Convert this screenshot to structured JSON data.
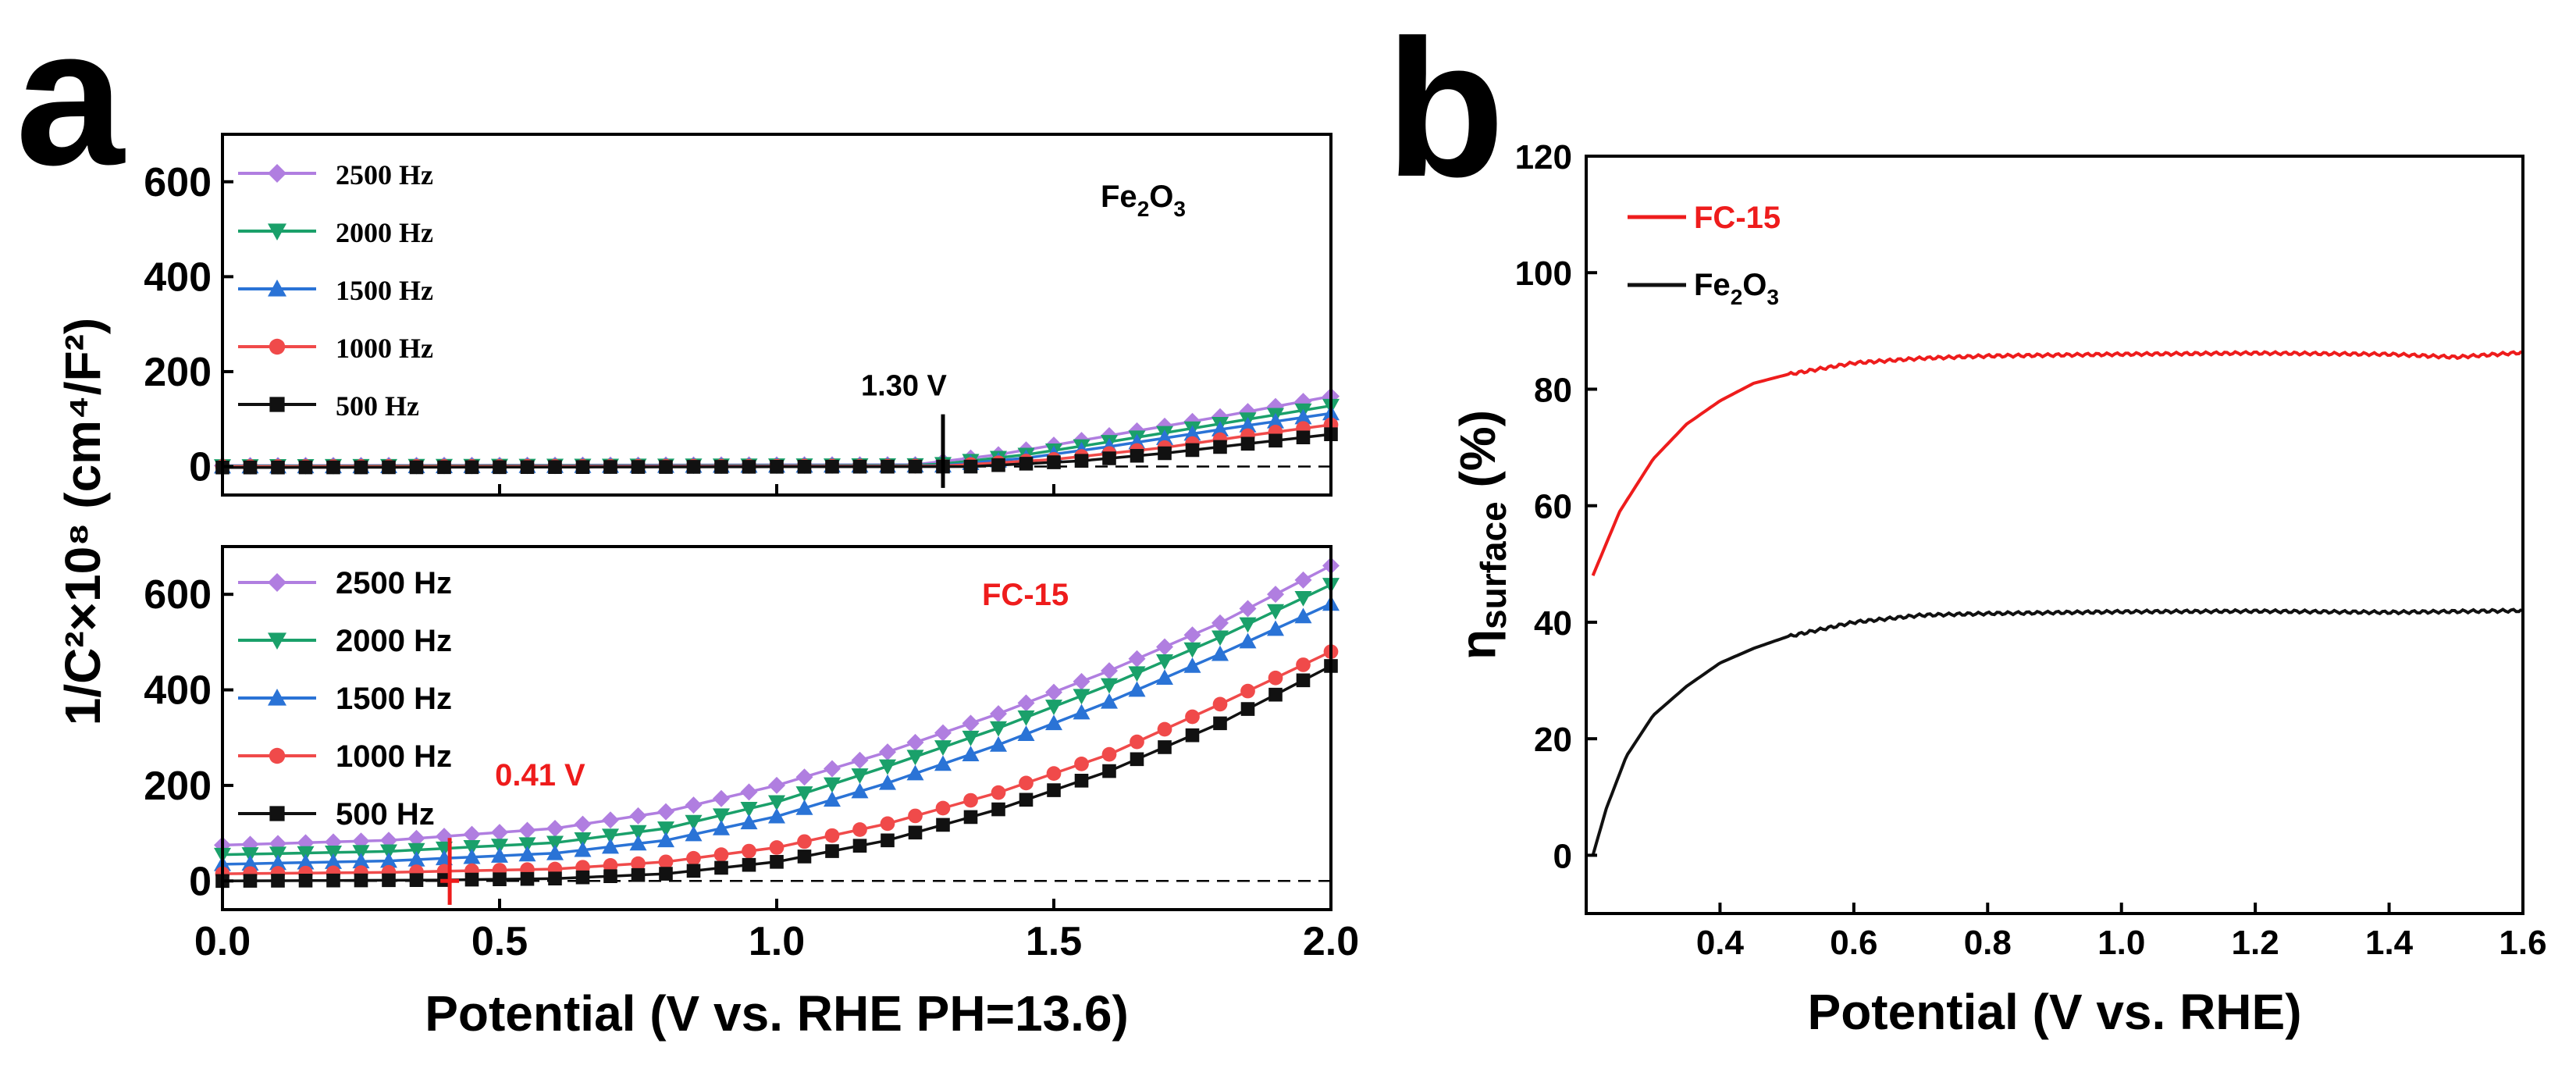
{
  "colors": {
    "f2500": "#b07ee0",
    "f2000": "#1aa06a",
    "f1500": "#2a73d6",
    "f1000": "#f04a4a",
    "f500": "#111111",
    "fc15": "#ee1c1c",
    "fe2o3": "#111111",
    "annot_red": "#ee1c1c"
  },
  "chart_data": [
    {
      "panel": "a",
      "type": "line",
      "shared_xlabel": "Potential (V vs. RHE PH=13.6)",
      "shared_ylabel": "1/C²×10⁸ (cm⁴/F²)",
      "xlim": [
        0,
        2.0
      ],
      "xticks": [
        "0.0",
        "0.5",
        "1.0",
        "1.5",
        "2.0"
      ],
      "subplots": [
        {
          "id": "top",
          "title": "Fe2O3",
          "title_main": "Fe",
          "title_sub1": "2",
          "title_mid": "O",
          "title_sub2": "3",
          "ylim": [
            -60,
            700
          ],
          "yticks": [
            "0",
            "200",
            "400",
            "600"
          ],
          "zero_line": "dashed",
          "annotation": {
            "label": "1.30 V",
            "x": 1.3
          },
          "legend": [
            "2500 Hz",
            "2000 Hz",
            "1500 Hz",
            "1000 Hz",
            "500 Hz"
          ],
          "series": [
            {
              "name": "2500 Hz",
              "marker": "diamond",
              "color_key": "f2500",
              "points": [
                [
                  0,
                  2
                ],
                [
                  1.25,
                  4
                ],
                [
                  1.4,
                  25
                ],
                [
                  1.6,
                  65
                ],
                [
                  1.8,
                  105
                ],
                [
                  2.0,
                  148
                ]
              ]
            },
            {
              "name": "2000 Hz",
              "marker": "triangle-down",
              "color_key": "f2000",
              "points": [
                [
                  0,
                  1
                ],
                [
                  1.28,
                  3
                ],
                [
                  1.45,
                  25
                ],
                [
                  1.6,
                  52
                ],
                [
                  1.8,
                  90
                ],
                [
                  2.0,
                  128
                ]
              ]
            },
            {
              "name": "1500 Hz",
              "marker": "triangle-up",
              "color_key": "f1500",
              "points": [
                [
                  0,
                  0
                ],
                [
                  1.3,
                  2
                ],
                [
                  1.45,
                  18
                ],
                [
                  1.6,
                  42
                ],
                [
                  1.8,
                  78
                ],
                [
                  2.0,
                  112
                ]
              ]
            },
            {
              "name": "1000 Hz",
              "marker": "circle",
              "color_key": "f1000",
              "points": [
                [
                  0,
                  0
                ],
                [
                  1.3,
                  1
                ],
                [
                  1.5,
                  15
                ],
                [
                  1.7,
                  40
                ],
                [
                  1.85,
                  65
                ],
                [
                  2.0,
                  88
                ]
              ]
            },
            {
              "name": "500 Hz",
              "marker": "square",
              "color_key": "f500",
              "points": [
                [
                  0,
                  -2
                ],
                [
                  1.35,
                  0
                ],
                [
                  1.55,
                  12
                ],
                [
                  1.7,
                  28
                ],
                [
                  1.85,
                  48
                ],
                [
                  2.0,
                  68
                ]
              ]
            }
          ]
        },
        {
          "id": "bottom",
          "title": "FC-15",
          "ylim": [
            -60,
            700
          ],
          "yticks": [
            "0",
            "200",
            "400",
            "600"
          ],
          "zero_line": "dashed",
          "annotation": {
            "label": "0.41 V",
            "x": 0.41
          },
          "legend": [
            "2500 Hz",
            "2000 Hz",
            "1500 Hz",
            "1000 Hz",
            "500 Hz"
          ],
          "series": [
            {
              "name": "2500 Hz",
              "marker": "diamond",
              "color_key": "f2500",
              "points": [
                [
                  0,
                  75
                ],
                [
                  0.3,
                  85
                ],
                [
                  0.6,
                  110
                ],
                [
                  0.8,
                  145
                ],
                [
                  1.0,
                  200
                ],
                [
                  1.2,
                  270
                ],
                [
                  1.4,
                  350
                ],
                [
                  1.6,
                  440
                ],
                [
                  1.8,
                  540
                ],
                [
                  2.0,
                  660
                ]
              ]
            },
            {
              "name": "2000 Hz",
              "marker": "triangle-down",
              "color_key": "f2000",
              "points": [
                [
                  0,
                  55
                ],
                [
                  0.3,
                  62
                ],
                [
                  0.6,
                  80
                ],
                [
                  0.8,
                  110
                ],
                [
                  1.0,
                  165
                ],
                [
                  1.2,
                  240
                ],
                [
                  1.4,
                  320
                ],
                [
                  1.6,
                  410
                ],
                [
                  1.8,
                  510
                ],
                [
                  2.0,
                  620
                ]
              ]
            },
            {
              "name": "1500 Hz",
              "marker": "triangle-up",
              "color_key": "f1500",
              "points": [
                [
                  0,
                  35
                ],
                [
                  0.3,
                  42
                ],
                [
                  0.6,
                  58
                ],
                [
                  0.8,
                  85
                ],
                [
                  1.0,
                  135
                ],
                [
                  1.2,
                  205
                ],
                [
                  1.4,
                  285
                ],
                [
                  1.6,
                  375
                ],
                [
                  1.8,
                  475
                ],
                [
                  2.0,
                  580
                ]
              ]
            },
            {
              "name": "1000 Hz",
              "marker": "circle",
              "color_key": "f1000",
              "points": [
                [
                  0,
                  15
                ],
                [
                  0.3,
                  18
                ],
                [
                  0.6,
                  25
                ],
                [
                  0.8,
                  40
                ],
                [
                  1.0,
                  70
                ],
                [
                  1.2,
                  120
                ],
                [
                  1.4,
                  185
                ],
                [
                  1.6,
                  265
                ],
                [
                  1.8,
                  370
                ],
                [
                  2.0,
                  480
                ]
              ]
            },
            {
              "name": "500 Hz",
              "marker": "square",
              "color_key": "f500",
              "points": [
                [
                  0,
                  0
                ],
                [
                  0.4,
                  2
                ],
                [
                  0.6,
                  5
                ],
                [
                  0.8,
                  15
                ],
                [
                  1.0,
                  40
                ],
                [
                  1.2,
                  85
                ],
                [
                  1.4,
                  150
                ],
                [
                  1.6,
                  230
                ],
                [
                  1.8,
                  330
                ],
                [
                  2.0,
                  450
                ]
              ]
            }
          ]
        }
      ]
    },
    {
      "panel": "b",
      "type": "line",
      "xlabel": "Potential (V vs. RHE)",
      "ylabel_main": "η",
      "ylabel_sub": "surface",
      "ylabel_unit": " (%)",
      "xlim": [
        0.2,
        1.6
      ],
      "ylim": [
        -10,
        120
      ],
      "xticks": [
        "0.4",
        "0.6",
        "0.8",
        "1.0",
        "1.2",
        "1.4",
        "1.6"
      ],
      "yticks": [
        "0",
        "20",
        "40",
        "60",
        "80",
        "100",
        "120"
      ],
      "legend": [
        "FC-15",
        "Fe2O3"
      ],
      "series": [
        {
          "name": "FC-15",
          "color_key": "fc15",
          "points": [
            [
              0.21,
              48
            ],
            [
              0.25,
              59
            ],
            [
              0.3,
              68
            ],
            [
              0.35,
              74
            ],
            [
              0.4,
              78
            ],
            [
              0.45,
              81
            ],
            [
              0.5,
              82.5
            ],
            [
              0.6,
              84.5
            ],
            [
              0.7,
              85.3
            ],
            [
              0.8,
              85.7
            ],
            [
              1.0,
              86.0
            ],
            [
              1.2,
              86.2
            ],
            [
              1.4,
              86.0
            ],
            [
              1.5,
              85.5
            ],
            [
              1.6,
              86.3
            ]
          ]
        },
        {
          "name": "Fe2O3",
          "color_key": "fe2o3",
          "points": [
            [
              0.21,
              0
            ],
            [
              0.23,
              8
            ],
            [
              0.26,
              17
            ],
            [
              0.3,
              24
            ],
            [
              0.35,
              29
            ],
            [
              0.4,
              33
            ],
            [
              0.45,
              35.5
            ],
            [
              0.5,
              37.5
            ],
            [
              0.6,
              40
            ],
            [
              0.7,
              41.2
            ],
            [
              0.8,
              41.5
            ],
            [
              1.0,
              41.8
            ],
            [
              1.2,
              41.9
            ],
            [
              1.4,
              41.7
            ],
            [
              1.6,
              42.0
            ]
          ]
        }
      ]
    }
  ],
  "panel_labels": {
    "a": "a",
    "b": "b"
  },
  "legend_b": {
    "fc15": "FC-15",
    "fe_main": "Fe",
    "fe_sub1": "2",
    "fe_mid": "O",
    "fe_sub2": "3"
  }
}
